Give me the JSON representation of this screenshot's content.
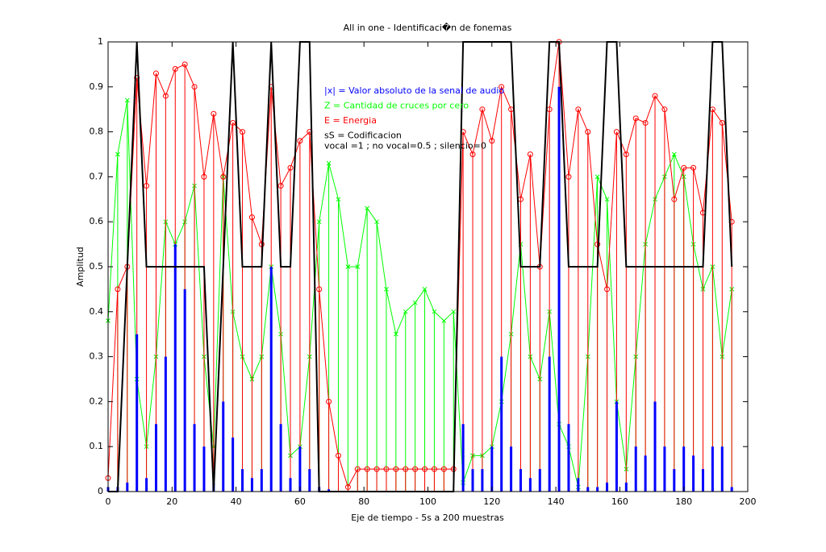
{
  "chart_data": {
    "type": "stem",
    "title": "All in one - Identificaci�n de fonemas",
    "xlabel": "Eje de tiempo - 5s a 200 muestras",
    "ylabel": "Amplitud",
    "xlim": [
      0,
      200
    ],
    "ylim": [
      0,
      1
    ],
    "xticks": [
      0,
      20,
      40,
      60,
      80,
      100,
      120,
      140,
      160,
      180,
      200
    ],
    "yticks": [
      0,
      0.1,
      0.2,
      0.3,
      0.4,
      0.5,
      0.6,
      0.7,
      0.8,
      0.9,
      1
    ],
    "grid": false,
    "note": "vocal =1 ; no vocal=0.5 ; silencio=0",
    "x": [
      0,
      3,
      6,
      9,
      12,
      15,
      18,
      21,
      24,
      27,
      30,
      33,
      36,
      39,
      42,
      45,
      48,
      51,
      54,
      57,
      60,
      63,
      66,
      69,
      72,
      75,
      78,
      81,
      84,
      87,
      90,
      93,
      96,
      99,
      102,
      105,
      108,
      111,
      114,
      117,
      120,
      123,
      126,
      129,
      132,
      135,
      138,
      141,
      144,
      147,
      150,
      153,
      156,
      159,
      162,
      165,
      168,
      171,
      174,
      177,
      180,
      183,
      186,
      189,
      192,
      195
    ],
    "series": [
      {
        "name": "|x| = Valor absoluto de la senal de audio",
        "color": "#0000ff",
        "marker": "none",
        "values": [
          0.01,
          0.01,
          0.02,
          0.35,
          0.03,
          0.15,
          0.3,
          0.55,
          0.45,
          0.15,
          0.1,
          0.02,
          0.2,
          0.12,
          0.05,
          0.03,
          0.05,
          0.5,
          0.15,
          0.03,
          0.1,
          0.05,
          0.01,
          0.005,
          0,
          0,
          0,
          0,
          0,
          0,
          0,
          0,
          0,
          0,
          0,
          0,
          0,
          0.15,
          0.05,
          0.05,
          0.1,
          0.3,
          0.1,
          0.05,
          0.03,
          0.05,
          0.3,
          0.9,
          0.15,
          0.03,
          0.01,
          0.01,
          0.02,
          0.2,
          0.02,
          0.1,
          0.08,
          0.2,
          0.1,
          0.05,
          0.1,
          0.08,
          0.05,
          0.1,
          0.1,
          0.01
        ]
      },
      {
        "name": "Z = Cantidad de cruces por cero",
        "color": "#00ff00",
        "marker": "x",
        "values": [
          0.38,
          0.75,
          0.87,
          0.25,
          0.1,
          0.3,
          0.6,
          0.55,
          0.6,
          0.68,
          0.3,
          0.1,
          0.7,
          0.4,
          0.3,
          0.25,
          0.3,
          0.5,
          0.35,
          0.08,
          0.1,
          0.3,
          0.6,
          0.73,
          0.65,
          0.5,
          0.5,
          0.63,
          0.6,
          0.45,
          0.35,
          0.4,
          0.42,
          0.45,
          0.4,
          0.38,
          0.4,
          0.02,
          0.08,
          0.08,
          0.1,
          0.2,
          0.35,
          0.55,
          0.3,
          0.25,
          0.4,
          0.15,
          0.1,
          0.01,
          0.3,
          0.7,
          0.65,
          0.2,
          0.05,
          0.3,
          0.55,
          0.65,
          0.7,
          0.75,
          0.7,
          0.55,
          0.45,
          0.5,
          0.3,
          0.45
        ]
      },
      {
        "name": "E = Energia",
        "color": "#ff0000",
        "marker": "o",
        "values": [
          0.03,
          0.45,
          0.5,
          0.92,
          0.68,
          0.93,
          0.88,
          0.94,
          0.95,
          0.9,
          0.7,
          0.84,
          0.7,
          0.82,
          0.8,
          0.61,
          0.55,
          0.9,
          0.68,
          0.72,
          0.78,
          0.8,
          0.45,
          0.2,
          0.08,
          0.01,
          0.05,
          0.05,
          0.05,
          0.05,
          0.05,
          0.05,
          0.05,
          0.05,
          0.05,
          0.05,
          0.05,
          0.8,
          0.75,
          0.85,
          0.78,
          0.9,
          0.85,
          0.65,
          0.75,
          0.5,
          0.85,
          1.0,
          0.7,
          0.85,
          0.8,
          0.55,
          0.45,
          0.8,
          0.75,
          0.83,
          0.82,
          0.88,
          0.85,
          0.65,
          0.72,
          0.72,
          0.62,
          0.85,
          0.82,
          0.6
        ]
      },
      {
        "name": "sS = Codificacion",
        "color": "#000000",
        "marker": "line",
        "values": [
          0,
          0,
          0.5,
          1,
          0.5,
          0.5,
          0.5,
          0.5,
          0.5,
          0.5,
          0.5,
          0,
          0.5,
          1,
          0.5,
          0.5,
          0.5,
          1,
          0.5,
          0.5,
          1,
          1,
          0,
          0,
          0,
          0,
          0,
          0,
          0,
          0,
          0,
          0,
          0,
          0,
          0,
          0,
          0,
          1,
          1,
          1,
          1,
          1,
          1,
          0.5,
          0.5,
          0.5,
          1,
          1,
          0.5,
          0.5,
          0.5,
          0.5,
          1,
          1,
          0.5,
          0.5,
          0.5,
          0.5,
          0.5,
          0.5,
          0.5,
          0.5,
          0.5,
          1,
          1,
          0.5
        ]
      }
    ]
  }
}
